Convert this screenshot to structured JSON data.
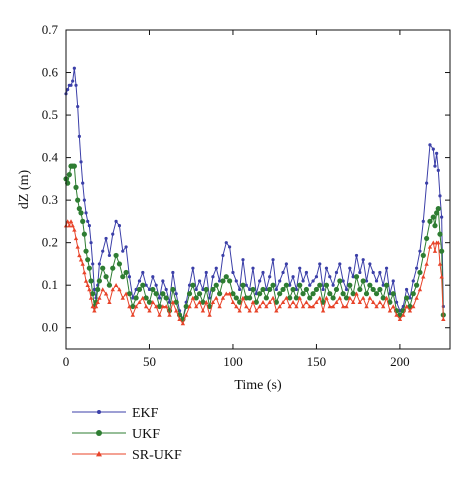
{
  "chart_data": {
    "type": "line",
    "title": "",
    "xlabel": "Time (s)",
    "ylabel": "dZ (m)",
    "xlim": [
      0,
      230
    ],
    "ylim": [
      -0.05,
      0.7
    ],
    "xticks": [
      0,
      50,
      100,
      150,
      200
    ],
    "xtick_labels": [
      "0",
      "50",
      "100",
      "150",
      "200"
    ],
    "yticks": [
      0.0,
      0.1,
      0.2,
      0.3,
      0.4,
      0.5,
      0.6,
      0.7
    ],
    "ytick_labels": [
      "0.0",
      "0.1",
      "0.2",
      "0.3",
      "0.4",
      "0.5",
      "0.6",
      "0.7"
    ],
    "grid": false,
    "legend_position": "below-left",
    "series": [
      {
        "name": "EKF",
        "color": "#3b3fa8",
        "marker": "dot",
        "x": [
          0,
          1,
          2,
          3,
          4,
          5,
          6,
          7,
          8,
          9,
          10,
          11,
          12,
          13,
          14,
          15,
          16,
          17,
          18,
          19,
          20,
          22,
          24,
          26,
          28,
          30,
          32,
          34,
          36,
          38,
          40,
          42,
          44,
          46,
          48,
          50,
          52,
          54,
          56,
          58,
          60,
          62,
          64,
          66,
          68,
          70,
          72,
          74,
          76,
          78,
          80,
          82,
          84,
          86,
          88,
          90,
          92,
          94,
          96,
          98,
          100,
          102,
          104,
          106,
          108,
          110,
          112,
          114,
          116,
          118,
          120,
          122,
          124,
          126,
          128,
          130,
          132,
          134,
          136,
          138,
          140,
          142,
          144,
          146,
          148,
          150,
          152,
          154,
          156,
          158,
          160,
          162,
          164,
          166,
          168,
          170,
          172,
          174,
          176,
          178,
          180,
          182,
          184,
          186,
          188,
          190,
          192,
          194,
          196,
          198,
          200,
          202,
          204,
          206,
          208,
          210,
          212,
          214,
          216,
          218,
          220,
          221,
          222,
          223,
          224,
          225,
          226
        ],
        "y": [
          0.55,
          0.56,
          0.57,
          0.57,
          0.58,
          0.61,
          0.57,
          0.52,
          0.45,
          0.39,
          0.34,
          0.3,
          0.27,
          0.25,
          0.24,
          0.2,
          0.15,
          0.09,
          0.07,
          0.1,
          0.15,
          0.18,
          0.21,
          0.17,
          0.22,
          0.25,
          0.24,
          0.18,
          0.19,
          0.12,
          0.07,
          0.09,
          0.11,
          0.13,
          0.1,
          0.09,
          0.12,
          0.1,
          0.07,
          0.11,
          0.09,
          0.06,
          0.13,
          0.08,
          0.04,
          0.02,
          0.06,
          0.1,
          0.14,
          0.09,
          0.11,
          0.09,
          0.13,
          0.07,
          0.12,
          0.14,
          0.11,
          0.17,
          0.2,
          0.19,
          0.13,
          0.11,
          0.09,
          0.16,
          0.1,
          0.09,
          0.14,
          0.08,
          0.11,
          0.13,
          0.09,
          0.12,
          0.16,
          0.09,
          0.11,
          0.13,
          0.15,
          0.1,
          0.12,
          0.09,
          0.14,
          0.11,
          0.13,
          0.1,
          0.11,
          0.12,
          0.15,
          0.09,
          0.14,
          0.12,
          0.1,
          0.13,
          0.15,
          0.11,
          0.09,
          0.14,
          0.12,
          0.17,
          0.13,
          0.16,
          0.11,
          0.15,
          0.13,
          0.11,
          0.13,
          0.1,
          0.14,
          0.08,
          0.11,
          0.06,
          0.04,
          0.05,
          0.09,
          0.07,
          0.11,
          0.14,
          0.18,
          0.25,
          0.34,
          0.43,
          0.42,
          0.38,
          0.41,
          0.37,
          0.31,
          0.26,
          0.05
        ]
      },
      {
        "name": "UKF",
        "color": "#2e7d32",
        "marker": "circle",
        "x": [
          0,
          1,
          2,
          3,
          4,
          5,
          6,
          7,
          8,
          9,
          10,
          11,
          12,
          13,
          14,
          15,
          16,
          17,
          18,
          19,
          20,
          22,
          24,
          26,
          28,
          30,
          32,
          34,
          36,
          38,
          40,
          42,
          44,
          46,
          48,
          50,
          52,
          54,
          56,
          58,
          60,
          62,
          64,
          66,
          68,
          70,
          72,
          74,
          76,
          78,
          80,
          82,
          84,
          86,
          88,
          90,
          92,
          94,
          96,
          98,
          100,
          102,
          104,
          106,
          108,
          110,
          112,
          114,
          116,
          118,
          120,
          122,
          124,
          126,
          128,
          130,
          132,
          134,
          136,
          138,
          140,
          142,
          144,
          146,
          148,
          150,
          152,
          154,
          156,
          158,
          160,
          162,
          164,
          166,
          168,
          170,
          172,
          174,
          176,
          178,
          180,
          182,
          184,
          186,
          188,
          190,
          192,
          194,
          196,
          198,
          200,
          202,
          204,
          206,
          208,
          210,
          212,
          214,
          216,
          218,
          220,
          221,
          222,
          223,
          224,
          225,
          226
        ],
        "y": [
          0.35,
          0.34,
          0.36,
          0.38,
          0.38,
          0.38,
          0.33,
          0.3,
          0.28,
          0.27,
          0.25,
          0.22,
          0.18,
          0.16,
          0.14,
          0.11,
          0.08,
          0.05,
          0.06,
          0.09,
          0.11,
          0.14,
          0.12,
          0.1,
          0.14,
          0.17,
          0.15,
          0.12,
          0.13,
          0.08,
          0.05,
          0.07,
          0.09,
          0.1,
          0.07,
          0.06,
          0.09,
          0.08,
          0.05,
          0.08,
          0.07,
          0.04,
          0.09,
          0.06,
          0.03,
          0.02,
          0.05,
          0.08,
          0.1,
          0.07,
          0.08,
          0.06,
          0.09,
          0.05,
          0.09,
          0.1,
          0.08,
          0.11,
          0.12,
          0.11,
          0.08,
          0.07,
          0.06,
          0.1,
          0.07,
          0.07,
          0.09,
          0.06,
          0.08,
          0.09,
          0.07,
          0.09,
          0.1,
          0.06,
          0.08,
          0.09,
          0.1,
          0.07,
          0.09,
          0.07,
          0.1,
          0.08,
          0.09,
          0.07,
          0.08,
          0.09,
          0.1,
          0.06,
          0.1,
          0.08,
          0.07,
          0.09,
          0.11,
          0.08,
          0.07,
          0.1,
          0.08,
          0.12,
          0.09,
          0.11,
          0.08,
          0.1,
          0.09,
          0.08,
          0.09,
          0.07,
          0.1,
          0.06,
          0.08,
          0.04,
          0.03,
          0.04,
          0.07,
          0.05,
          0.08,
          0.1,
          0.13,
          0.17,
          0.21,
          0.25,
          0.26,
          0.24,
          0.27,
          0.28,
          0.22,
          0.18,
          0.03
        ]
      },
      {
        "name": "SR-UKF",
        "color": "#e8442a",
        "marker": "triangle",
        "x": [
          0,
          1,
          2,
          3,
          4,
          5,
          6,
          7,
          8,
          9,
          10,
          11,
          12,
          13,
          14,
          15,
          16,
          17,
          18,
          19,
          20,
          22,
          24,
          26,
          28,
          30,
          32,
          34,
          36,
          38,
          40,
          42,
          44,
          46,
          48,
          50,
          52,
          54,
          56,
          58,
          60,
          62,
          64,
          66,
          68,
          70,
          72,
          74,
          76,
          78,
          80,
          82,
          84,
          86,
          88,
          90,
          92,
          94,
          96,
          98,
          100,
          102,
          104,
          106,
          108,
          110,
          112,
          114,
          116,
          118,
          120,
          122,
          124,
          126,
          128,
          130,
          132,
          134,
          136,
          138,
          140,
          142,
          144,
          146,
          148,
          150,
          152,
          154,
          156,
          158,
          160,
          162,
          164,
          166,
          168,
          170,
          172,
          174,
          176,
          178,
          180,
          182,
          184,
          186,
          188,
          190,
          192,
          194,
          196,
          198,
          200,
          202,
          204,
          206,
          208,
          210,
          212,
          214,
          216,
          218,
          220,
          221,
          222,
          223,
          224,
          225,
          226
        ],
        "y": [
          0.24,
          0.25,
          0.24,
          0.25,
          0.24,
          0.23,
          0.21,
          0.19,
          0.17,
          0.16,
          0.15,
          0.13,
          0.11,
          0.1,
          0.09,
          0.07,
          0.05,
          0.04,
          0.05,
          0.06,
          0.07,
          0.09,
          0.08,
          0.06,
          0.09,
          0.1,
          0.09,
          0.07,
          0.08,
          0.05,
          0.03,
          0.05,
          0.06,
          0.07,
          0.05,
          0.04,
          0.06,
          0.05,
          0.03,
          0.05,
          0.05,
          0.03,
          0.06,
          0.04,
          0.02,
          0.01,
          0.03,
          0.05,
          0.07,
          0.05,
          0.06,
          0.04,
          0.06,
          0.03,
          0.06,
          0.07,
          0.05,
          0.07,
          0.08,
          0.08,
          0.06,
          0.05,
          0.04,
          0.07,
          0.05,
          0.04,
          0.06,
          0.04,
          0.05,
          0.06,
          0.05,
          0.06,
          0.07,
          0.04,
          0.05,
          0.06,
          0.07,
          0.05,
          0.06,
          0.05,
          0.07,
          0.05,
          0.06,
          0.05,
          0.05,
          0.06,
          0.07,
          0.04,
          0.07,
          0.05,
          0.05,
          0.06,
          0.07,
          0.05,
          0.05,
          0.07,
          0.06,
          0.08,
          0.06,
          0.07,
          0.05,
          0.07,
          0.06,
          0.05,
          0.06,
          0.05,
          0.07,
          0.04,
          0.05,
          0.03,
          0.02,
          0.03,
          0.05,
          0.04,
          0.05,
          0.07,
          0.09,
          0.12,
          0.15,
          0.19,
          0.2,
          0.18,
          0.2,
          0.2,
          0.15,
          0.12,
          0.02
        ]
      }
    ]
  }
}
